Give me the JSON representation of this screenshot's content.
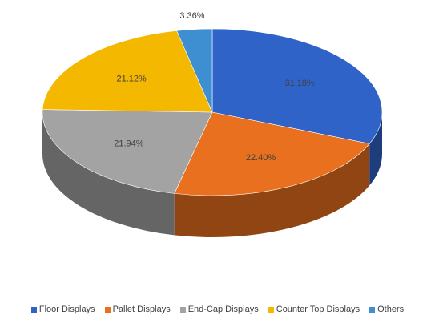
{
  "chart_data": {
    "type": "pie",
    "style": "3d",
    "categories": [
      "Floor Displays",
      "Pallet Displays",
      "End-Cap Displays",
      "Counter Top Displays",
      "Others"
    ],
    "values": [
      31.18,
      22.4,
      21.94,
      21.12,
      3.36
    ],
    "value_labels": [
      "31.18%",
      "22.40%",
      "21.94%",
      "21.12%",
      "3.36%"
    ],
    "colors": [
      "#2f63c8",
      "#e8701e",
      "#a3a3a3",
      "#f5b800",
      "#3d8fd1"
    ],
    "legend": "bottom"
  }
}
